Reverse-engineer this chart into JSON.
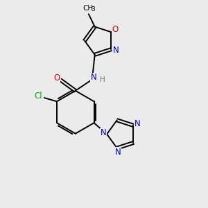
{
  "bg_color": "#ebebeb",
  "bond_color": "#000000",
  "atom_colors": {
    "O": "#dd0000",
    "N": "#0000cc",
    "Cl": "#00aa00",
    "C": "#000000",
    "H": "#777777"
  },
  "lw": 1.4,
  "fs": 8.0
}
